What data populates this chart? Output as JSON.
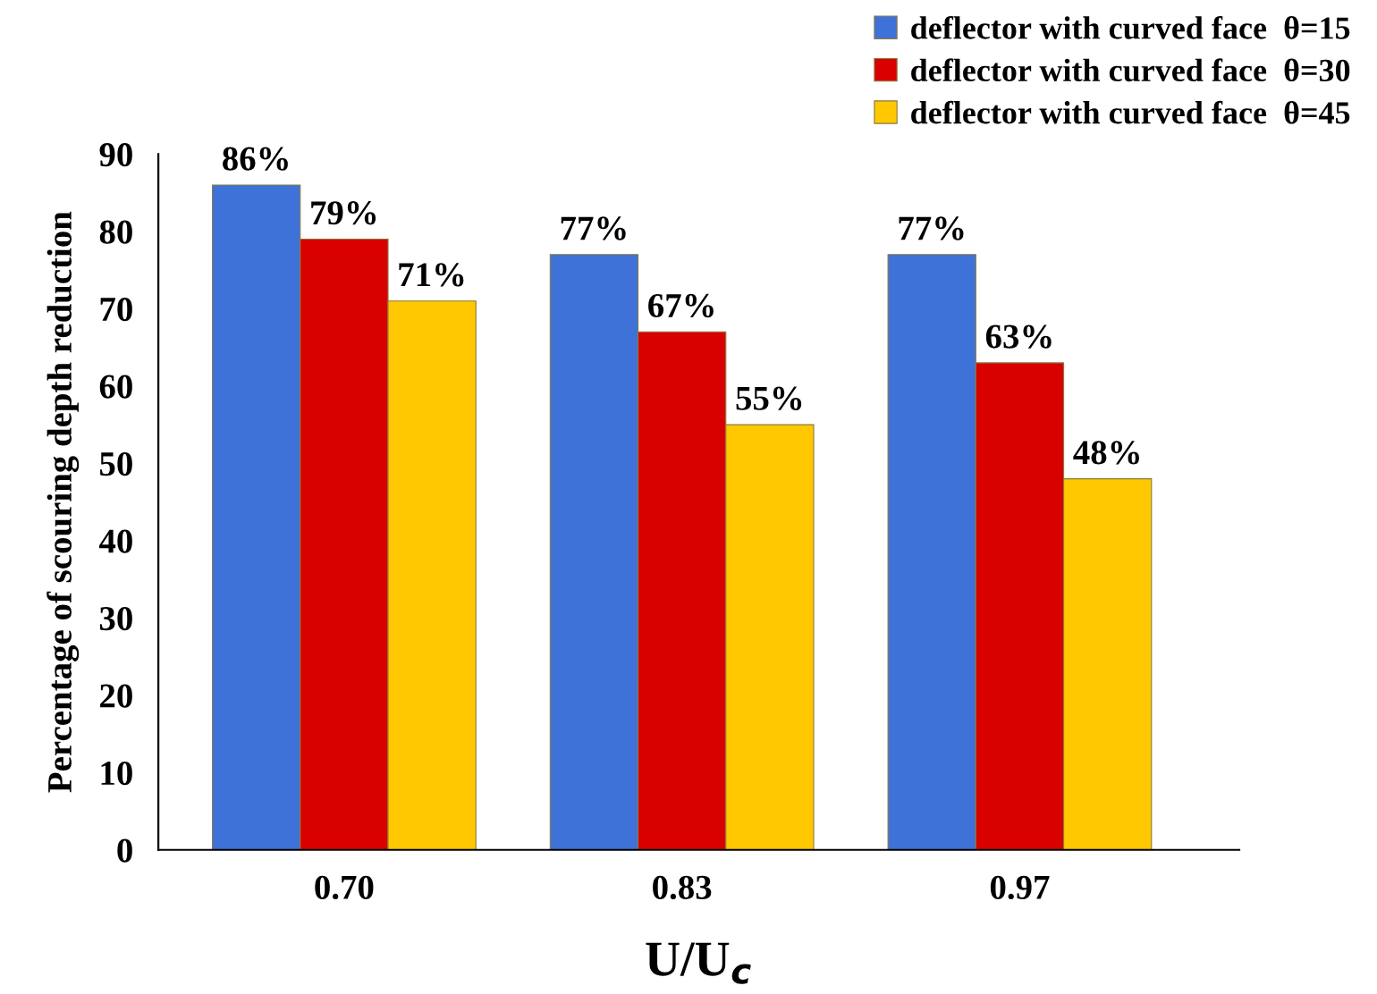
{
  "chart_data": {
    "type": "bar",
    "xlabel": "U/U$_{c}$",
    "ylabel": "Percentage of scouring depth reduction",
    "categories": [
      "0.70",
      "0.83",
      "0.97"
    ],
    "series": [
      {
        "name": "deflector with curved face  θ=15",
        "color": "#3f72d9",
        "values": [
          86,
          77,
          77
        ],
        "value_labels": [
          "86%",
          "77%",
          "77%"
        ]
      },
      {
        "name": "deflector with curved face  θ=30",
        "color": "#d90000",
        "values": [
          79,
          67,
          63
        ],
        "value_labels": [
          "79%",
          "67%",
          "63%"
        ]
      },
      {
        "name": "deflector with curved face  θ=45",
        "color": "#ffc800",
        "values": [
          71,
          55,
          48
        ],
        "value_labels": [
          "71%",
          "55%",
          "48%"
        ]
      }
    ],
    "ylim": [
      0,
      90
    ],
    "yticks": [
      0,
      10,
      20,
      30,
      40,
      50,
      60,
      70,
      80,
      90
    ],
    "grid": false,
    "legend": "top right"
  }
}
